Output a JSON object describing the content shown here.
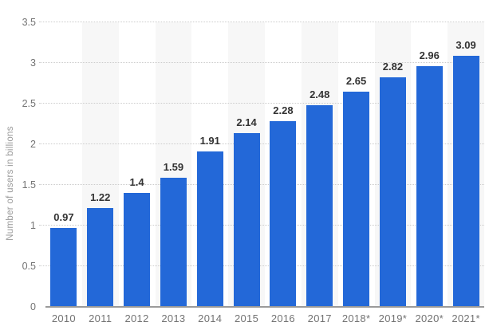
{
  "chart_data": {
    "type": "bar",
    "title": "",
    "xlabel": "",
    "ylabel": "Number of users in billions",
    "categories": [
      "2010",
      "2011",
      "2012",
      "2013",
      "2014",
      "2015",
      "2016",
      "2017",
      "2018*",
      "2019*",
      "2020*",
      "2021*"
    ],
    "values": [
      0.97,
      1.22,
      1.4,
      1.59,
      1.91,
      2.14,
      2.28,
      2.48,
      2.65,
      2.82,
      2.96,
      3.09
    ],
    "data_labels": [
      "0.97",
      "1.22",
      "1.4",
      "1.59",
      "1.91",
      "2.14",
      "2.28",
      "2.48",
      "2.65",
      "2.82",
      "2.96",
      "3.09"
    ],
    "ylim": [
      0,
      3.5
    ],
    "yticks": [
      {
        "value": 0,
        "label": "0"
      },
      {
        "value": 0.5,
        "label": "0.5"
      },
      {
        "value": 1,
        "label": "1"
      },
      {
        "value": 1.5,
        "label": "1.5"
      },
      {
        "value": 2,
        "label": "2"
      },
      {
        "value": 2.5,
        "label": "2.5"
      },
      {
        "value": 3,
        "label": "3"
      },
      {
        "value": 3.5,
        "label": "3.5"
      }
    ],
    "grid": "horizontal-dotted",
    "legend": "none",
    "striped_columns": "every second category starting with 2011",
    "colors": {
      "bar": "#2368d8",
      "column_stripe": "#f7f7f7",
      "gridline": "#cccccc",
      "axis_line": "#9a9a9a",
      "value_label": "#333333",
      "tick_label": "#737373",
      "axis_title": "#999999",
      "background": "#ffffff"
    }
  }
}
